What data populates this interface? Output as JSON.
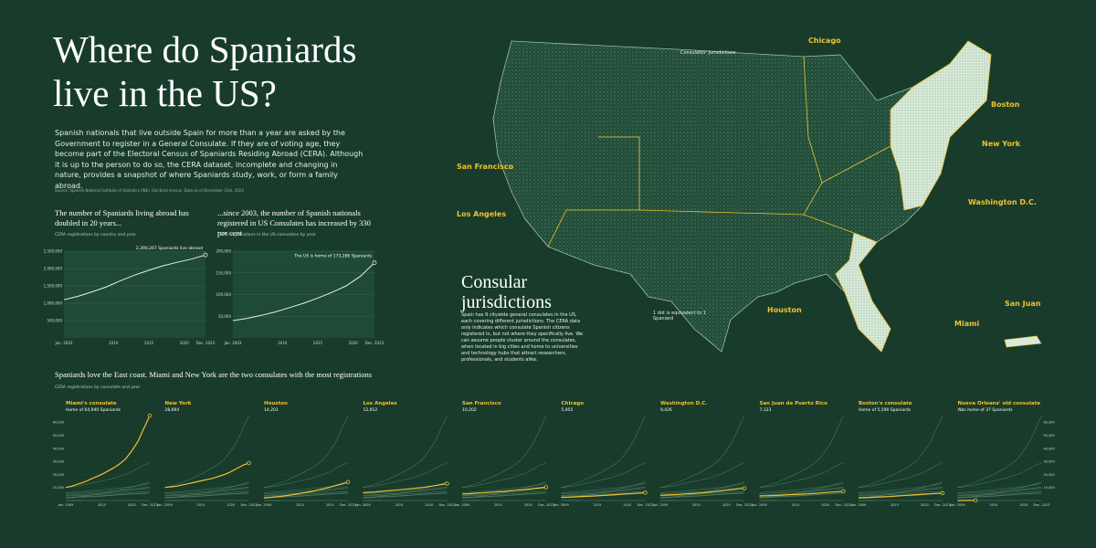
{
  "header": {
    "title": "Where do Spaniards live in the US?",
    "intro": "Spanish nationals that live outside Spain for more than a year are asked by the Government to register in a General Consulate. If they are of voting age, they become part of the Electoral Census of Spaniards Residing Abroad (CERA). Although it is up to the person to do so, the CERA dataset, incomplete and changing in nature, provides a snapshot of where Spaniards study, work, or form a family abroad.",
    "source": "Source: Spanish National Institute of Statistics (INE), Electoral census. Data as of December 31st, 2023"
  },
  "map": {
    "jurisdictions_label": "Consulates' jurisdictions",
    "dot_note": "1 dot is equivalent to 1 Spaniard",
    "labels": [
      "Chicago",
      "Boston",
      "New York",
      "Washington D.C.",
      "Miami",
      "Houston",
      "Los Angeles",
      "San Francisco",
      "San Juan"
    ],
    "section_title": "Consular jurisdictions",
    "section_text": "Spain has 9 citywide general consulates in the US, each covering different jurisdictions. The CERA data only indicates which consulate Spanish citizens registered in, but not where they specifically live. We can assume people cluster around the consulates, when located in big cities and home to universities and technology hubs that attract researchers, professionals, and students alike."
  },
  "chart_data": [
    {
      "type": "line",
      "title": "The number of Spaniards living abroad has doubled in 20 years...",
      "subtitle": "CERA registrations by country and year",
      "x": [
        2003,
        2005,
        2007,
        2009,
        2011,
        2013,
        2015,
        2017,
        2019,
        2021,
        2023
      ],
      "xlim": [
        2003,
        2023
      ],
      "xticks": [
        {
          "value": 2003,
          "label": "Jan. 2003"
        },
        2010,
        2015,
        2020,
        {
          "value": 2023,
          "label": "Dec. 2023"
        }
      ],
      "ylim": [
        0,
        2500000
      ],
      "yticks": [
        {
          "value": 500000,
          "label": "500,000"
        },
        {
          "value": 1000000,
          "label": "1,000,000"
        },
        {
          "value": 1500000,
          "label": "1,500,000"
        },
        {
          "value": 2000000,
          "label": "2,000,000"
        },
        {
          "value": 2500000,
          "label": "2,500,000"
        }
      ],
      "annotation": "2,390,267 Spaniards live abroad",
      "series": [
        {
          "color": "#e8efe9",
          "values": [
            1100000,
            1200000,
            1330000,
            1470000,
            1650000,
            1810000,
            1950000,
            2080000,
            2180000,
            2270000,
            2390267
          ]
        }
      ]
    },
    {
      "type": "line",
      "title": "...since 2003, the number of Spanish nationals registered in US Consulates has increased by 330 per cent",
      "subtitle": "CERA registrations in the US consulates by year",
      "x": [
        2003,
        2005,
        2007,
        2009,
        2011,
        2013,
        2015,
        2017,
        2019,
        2021,
        2023
      ],
      "xlim": [
        2003,
        2023
      ],
      "xticks": [
        {
          "value": 2003,
          "label": "Jan. 2003"
        },
        2010,
        2015,
        2020,
        {
          "value": 2023,
          "label": "Dec. 2023"
        }
      ],
      "ylim": [
        0,
        200000
      ],
      "yticks": [
        {
          "value": 50000,
          "label": "50,000"
        },
        {
          "value": 100000,
          "label": "100,000"
        },
        {
          "value": 150000,
          "label": "150,000"
        },
        {
          "value": 200000,
          "label": "200,000"
        }
      ],
      "annotation": "The US is home of 173,286 Spaniards",
      "series": [
        {
          "color": "#e8efe9",
          "values": [
            40000,
            45000,
            52000,
            60000,
            70000,
            80000,
            92000,
            105000,
            120000,
            142000,
            173286
          ]
        }
      ]
    },
    {
      "type": "line",
      "title": "Spaniards love the East coast. Miami and New York are the two consulates with the most registrations",
      "subtitle": "CERA registrations by consulate and year",
      "x": [
        2009,
        2010,
        2011,
        2012,
        2013,
        2014,
        2015,
        2016,
        2017,
        2018,
        2019,
        2020,
        2021,
        2022,
        2023
      ],
      "xlim": [
        2009,
        2023
      ],
      "xticks": [
        {
          "value": 2009,
          "label": "Jan. 2009"
        },
        2015,
        2020,
        {
          "value": 2023,
          "label": "Dec. 2023"
        }
      ],
      "ylim": [
        0,
        65000
      ],
      "yticks": [
        {
          "value": 10000,
          "label": "10,000"
        },
        {
          "value": 20000,
          "label": "20,000"
        },
        {
          "value": 30000,
          "label": "30,000"
        },
        {
          "value": 40000,
          "label": "40,000"
        },
        {
          "value": 50000,
          "label": "50,000"
        },
        {
          "value": 60000,
          "label": "60,000"
        }
      ],
      "highlight_color": "#f2c12e",
      "series": [
        {
          "name": "Miami's consulate",
          "label": "Home of 64,940 Spaniards",
          "values": [
            10000,
            11000,
            12500,
            14000,
            16000,
            18000,
            20000,
            22500,
            25000,
            28000,
            32000,
            38000,
            45000,
            55000,
            64940
          ]
        },
        {
          "name": "New York",
          "label": "28,694",
          "values": [
            10000,
            10500,
            11000,
            12000,
            13000,
            14000,
            15000,
            16000,
            17000,
            18500,
            20000,
            22000,
            24500,
            27000,
            28694
          ]
        },
        {
          "name": "Houston",
          "label": "14,201",
          "values": [
            2000,
            2400,
            2800,
            3300,
            3900,
            4600,
            5400,
            6200,
            7000,
            8000,
            9000,
            10200,
            11500,
            12800,
            14201
          ]
        },
        {
          "name": "Los Angeles",
          "label": "12,912",
          "values": [
            6000,
            6300,
            6600,
            7000,
            7400,
            7800,
            8200,
            8600,
            9000,
            9500,
            10000,
            10700,
            11400,
            12100,
            12912
          ]
        },
        {
          "name": "San Francisco",
          "label": "10,202",
          "values": [
            5000,
            5200,
            5500,
            5800,
            6100,
            6400,
            6700,
            7000,
            7400,
            7800,
            8200,
            8700,
            9200,
            9700,
            10202
          ]
        },
        {
          "name": "Chicago",
          "label": "5,955",
          "values": [
            2500,
            2600,
            2800,
            3000,
            3200,
            3400,
            3600,
            3900,
            4200,
            4500,
            4800,
            5100,
            5400,
            5700,
            5955
          ]
        },
        {
          "name": "Washington D.C.",
          "label": "9,426",
          "values": [
            4000,
            4200,
            4400,
            4700,
            5000,
            5300,
            5600,
            5900,
            6300,
            6700,
            7200,
            7800,
            8400,
            8900,
            9426
          ]
        },
        {
          "name": "San Juan de Puerto Rico",
          "label": "7,123",
          "values": [
            3500,
            3600,
            3800,
            4000,
            4200,
            4400,
            4600,
            4800,
            5100,
            5400,
            5700,
            6100,
            6500,
            6800,
            7123
          ]
        },
        {
          "name": "Boston's consulate",
          "label": "Home of 5,590 Spaniards",
          "values": [
            2000,
            2200,
            2400,
            2600,
            2800,
            3000,
            3300,
            3600,
            3900,
            4200,
            4500,
            4800,
            5100,
            5350,
            5590
          ]
        },
        {
          "name": "Nueva Orleans' old consulate",
          "label": "Was home of 37 Spaniards",
          "values": [
            30,
            33,
            35,
            37,
            null,
            null,
            null,
            null,
            null,
            null,
            null,
            null,
            null,
            null,
            null
          ]
        }
      ]
    }
  ]
}
